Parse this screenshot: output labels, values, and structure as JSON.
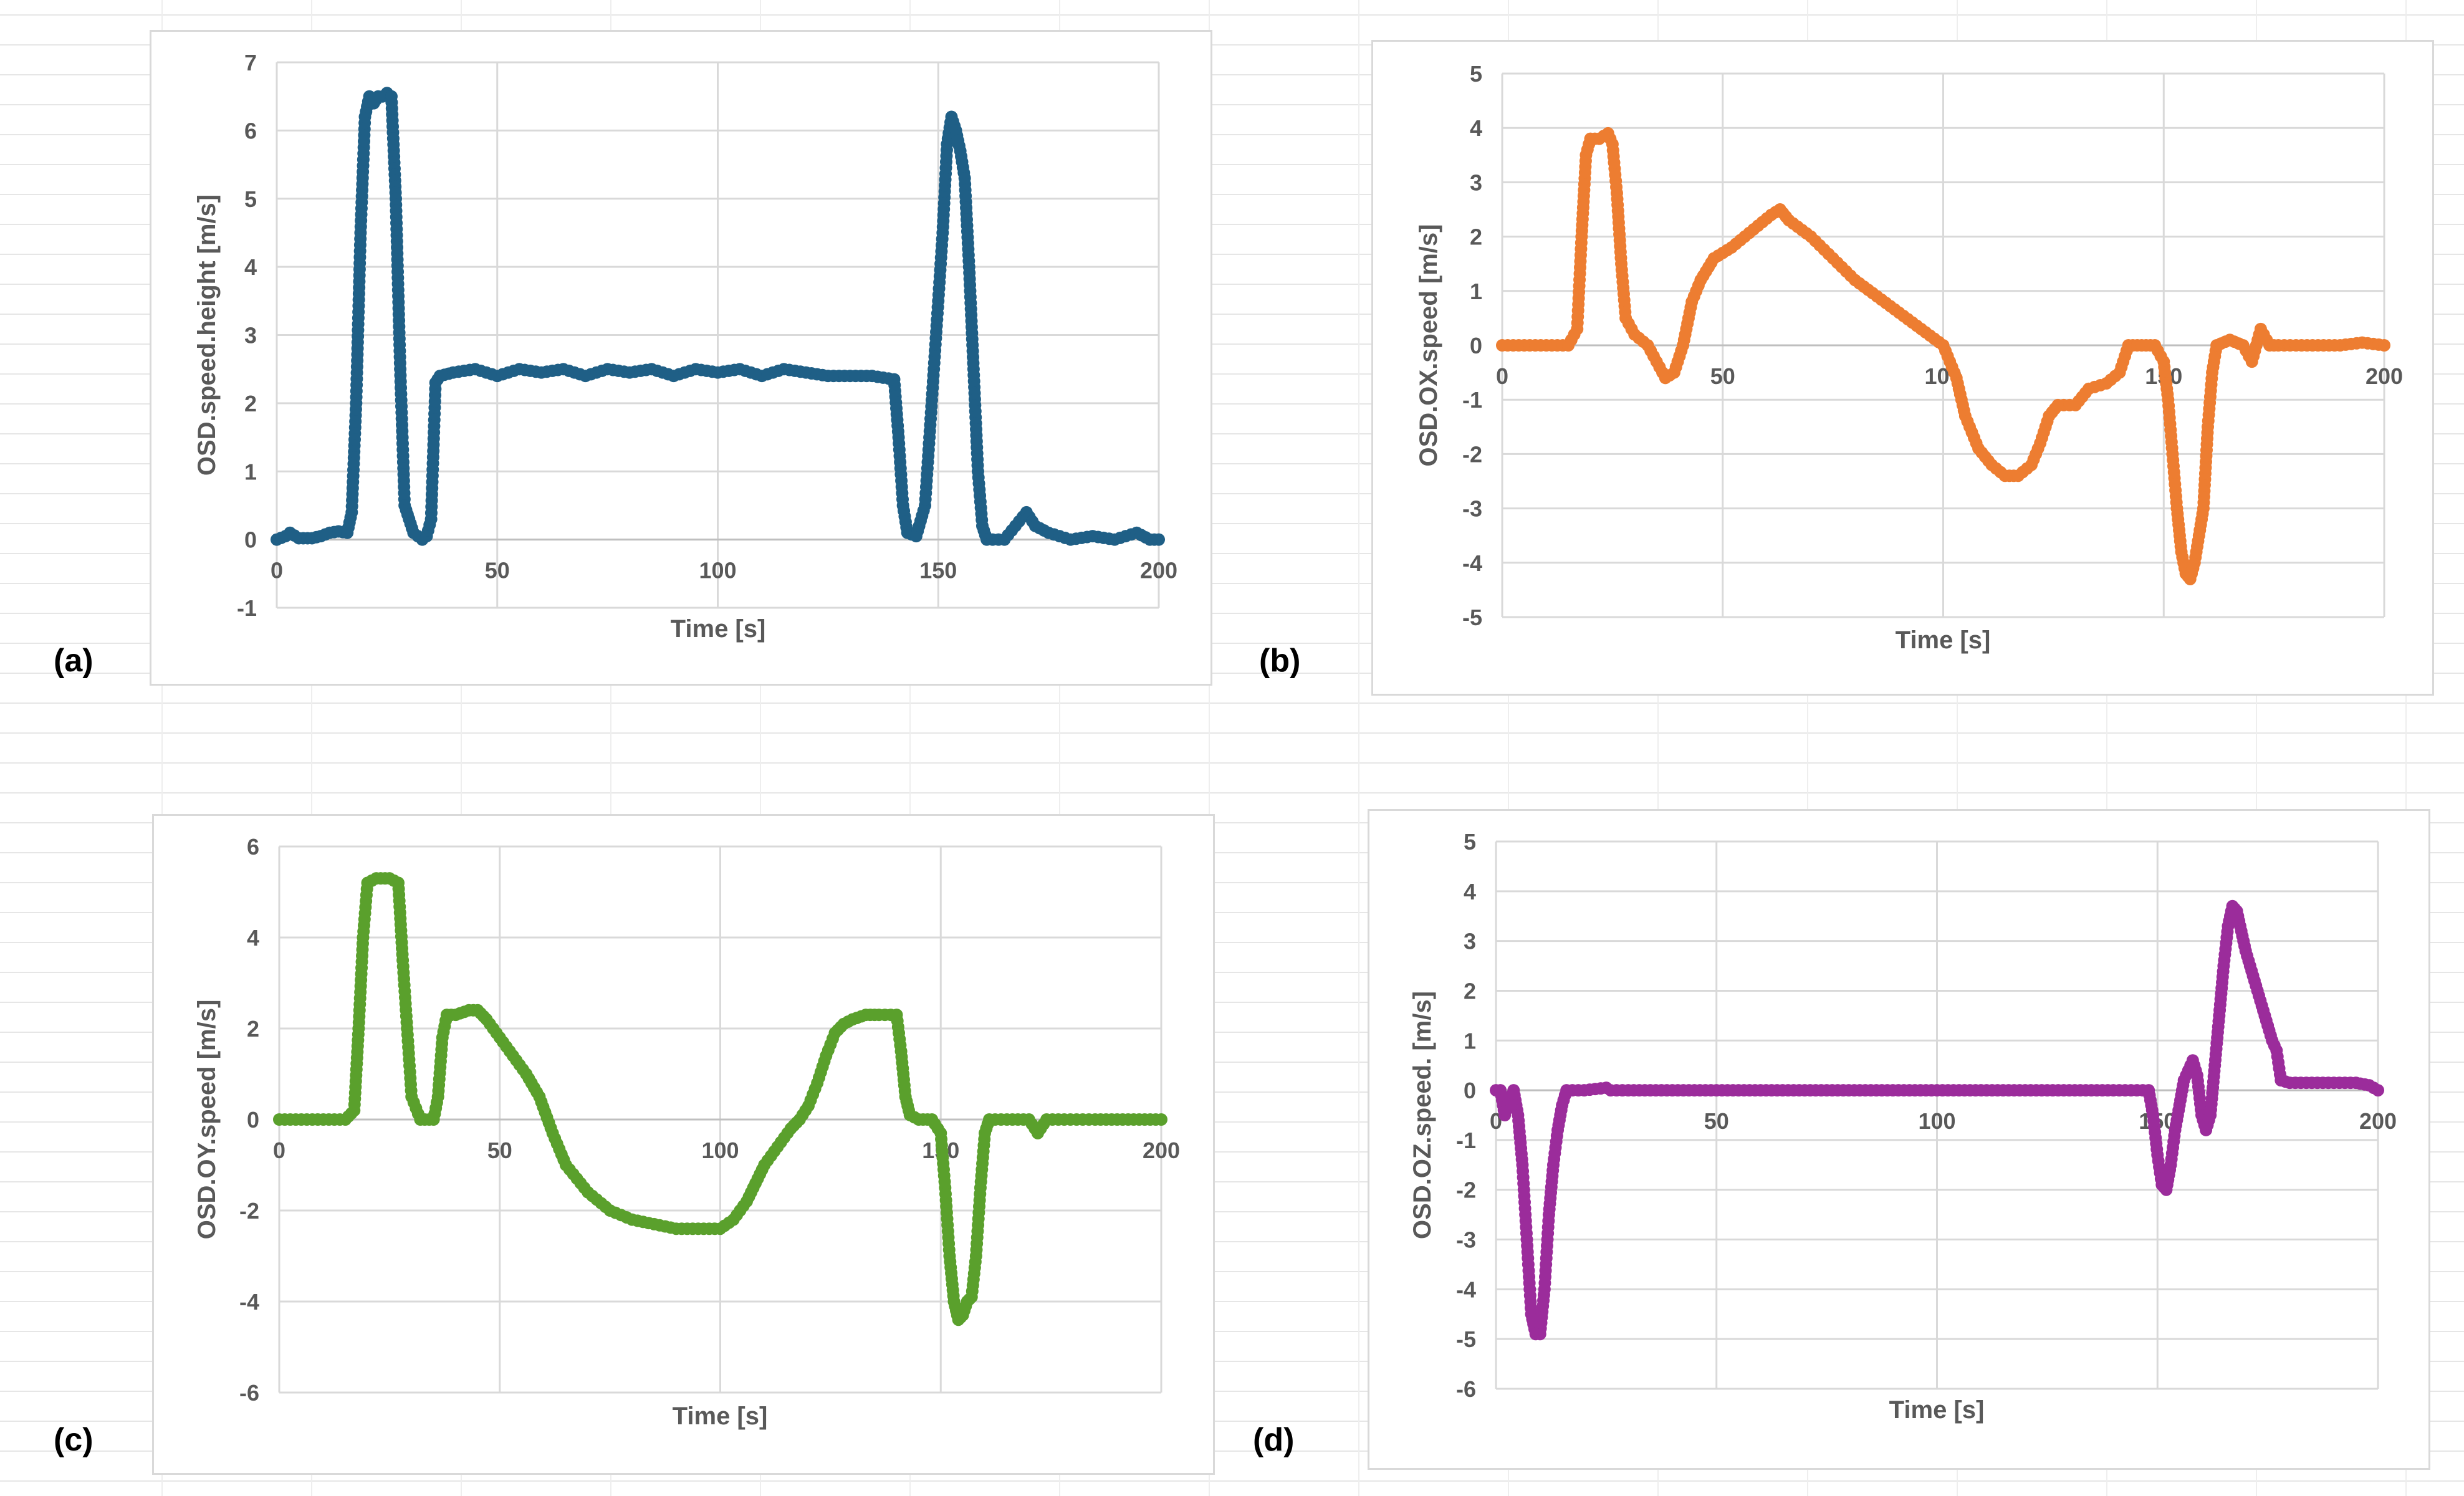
{
  "chart_data": [
    {
      "type": "scatter",
      "panel": "(a)",
      "xlabel": "Time [s]",
      "ylabel": "OSD.speed.height [m/s]",
      "xlim": [
        0,
        200
      ],
      "ylim": [
        -1,
        7
      ],
      "xticks": [
        0,
        50,
        100,
        150,
        200
      ],
      "yticks": [
        -1,
        0,
        1,
        2,
        3,
        4,
        5,
        6,
        7
      ],
      "color": "#1f5f86",
      "points": [
        [
          0,
          0
        ],
        [
          2,
          0.05
        ],
        [
          3,
          0.1
        ],
        [
          5,
          0.02
        ],
        [
          8,
          0.02
        ],
        [
          10,
          0.05
        ],
        [
          12,
          0.1
        ],
        [
          14,
          0.12
        ],
        [
          16,
          0.1
        ],
        [
          17,
          0.4
        ],
        [
          18,
          2.0
        ],
        [
          19,
          4.5
        ],
        [
          20,
          6.2
        ],
        [
          21,
          6.5
        ],
        [
          22,
          6.4
        ],
        [
          23,
          6.5
        ],
        [
          24,
          6.5
        ],
        [
          25,
          6.55
        ],
        [
          26,
          6.5
        ],
        [
          27,
          5.0
        ],
        [
          28,
          2.5
        ],
        [
          29,
          0.5
        ],
        [
          30,
          0.3
        ],
        [
          31,
          0.1
        ],
        [
          32,
          0.05
        ],
        [
          33,
          0
        ],
        [
          34,
          0.05
        ],
        [
          35,
          0.3
        ],
        [
          36,
          2.3
        ],
        [
          37,
          2.4
        ],
        [
          40,
          2.45
        ],
        [
          45,
          2.5
        ],
        [
          50,
          2.4
        ],
        [
          55,
          2.5
        ],
        [
          60,
          2.45
        ],
        [
          65,
          2.5
        ],
        [
          70,
          2.4
        ],
        [
          75,
          2.5
        ],
        [
          80,
          2.45
        ],
        [
          85,
          2.5
        ],
        [
          90,
          2.4
        ],
        [
          95,
          2.5
        ],
        [
          100,
          2.45
        ],
        [
          105,
          2.5
        ],
        [
          110,
          2.4
        ],
        [
          115,
          2.5
        ],
        [
          120,
          2.45
        ],
        [
          125,
          2.4
        ],
        [
          130,
          2.4
        ],
        [
          135,
          2.4
        ],
        [
          140,
          2.35
        ],
        [
          141,
          1.5
        ],
        [
          142,
          0.5
        ],
        [
          143,
          0.1
        ],
        [
          145,
          0.05
        ],
        [
          147,
          0.5
        ],
        [
          149,
          2.5
        ],
        [
          151,
          4.5
        ],
        [
          152,
          5.8
        ],
        [
          153,
          6.2
        ],
        [
          154,
          6.0
        ],
        [
          155,
          5.7
        ],
        [
          156,
          5.3
        ],
        [
          157,
          4.0
        ],
        [
          158,
          2.5
        ],
        [
          159,
          1.0
        ],
        [
          160,
          0.2
        ],
        [
          161,
          0
        ],
        [
          165,
          0
        ],
        [
          170,
          0.4
        ],
        [
          172,
          0.2
        ],
        [
          175,
          0.1
        ],
        [
          180,
          0
        ],
        [
          185,
          0.05
        ],
        [
          190,
          0
        ],
        [
          195,
          0.1
        ],
        [
          198,
          0
        ],
        [
          200,
          0
        ]
      ]
    },
    {
      "type": "scatter",
      "panel": "(b)",
      "xlabel": "Time [s]",
      "ylabel": "OSD.OX.speed [m/s]",
      "xlim": [
        0,
        200
      ],
      "ylim": [
        -5,
        5
      ],
      "xticks": [
        0,
        50,
        100,
        150,
        200
      ],
      "yticks": [
        -5,
        -4,
        -3,
        -2,
        -1,
        0,
        1,
        2,
        3,
        4,
        5
      ],
      "color": "#ed7d31",
      "points": [
        [
          0,
          0
        ],
        [
          5,
          0
        ],
        [
          10,
          0
        ],
        [
          15,
          0
        ],
        [
          17,
          0.3
        ],
        [
          18,
          2.0
        ],
        [
          19,
          3.5
        ],
        [
          20,
          3.8
        ],
        [
          22,
          3.8
        ],
        [
          24,
          3.9
        ],
        [
          25,
          3.7
        ],
        [
          26,
          2.8
        ],
        [
          27,
          1.5
        ],
        [
          28,
          0.5
        ],
        [
          30,
          0.2
        ],
        [
          33,
          0
        ],
        [
          35,
          -0.3
        ],
        [
          37,
          -0.6
        ],
        [
          39,
          -0.5
        ],
        [
          41,
          0
        ],
        [
          43,
          0.8
        ],
        [
          45,
          1.2
        ],
        [
          48,
          1.6
        ],
        [
          52,
          1.8
        ],
        [
          55,
          2.0
        ],
        [
          58,
          2.2
        ],
        [
          61,
          2.4
        ],
        [
          63,
          2.5
        ],
        [
          65,
          2.3
        ],
        [
          70,
          2.0
        ],
        [
          75,
          1.6
        ],
        [
          80,
          1.2
        ],
        [
          85,
          0.9
        ],
        [
          90,
          0.6
        ],
        [
          95,
          0.3
        ],
        [
          100,
          0
        ],
        [
          103,
          -0.6
        ],
        [
          105,
          -1.3
        ],
        [
          108,
          -1.9
        ],
        [
          111,
          -2.2
        ],
        [
          114,
          -2.4
        ],
        [
          117,
          -2.4
        ],
        [
          120,
          -2.2
        ],
        [
          122,
          -1.8
        ],
        [
          124,
          -1.3
        ],
        [
          126,
          -1.1
        ],
        [
          130,
          -1.1
        ],
        [
          133,
          -0.8
        ],
        [
          137,
          -0.7
        ],
        [
          140,
          -0.5
        ],
        [
          142,
          0
        ],
        [
          145,
          0
        ],
        [
          148,
          0
        ],
        [
          150,
          -0.3
        ],
        [
          151,
          -1.0
        ],
        [
          152,
          -2.0
        ],
        [
          153,
          -3.0
        ],
        [
          154,
          -3.8
        ],
        [
          155,
          -4.2
        ],
        [
          156,
          -4.3
        ],
        [
          157,
          -4.0
        ],
        [
          158,
          -3.5
        ],
        [
          159,
          -3.0
        ],
        [
          160,
          -1.5
        ],
        [
          161,
          -0.5
        ],
        [
          162,
          0
        ],
        [
          165,
          0.1
        ],
        [
          168,
          0
        ],
        [
          170,
          -0.3
        ],
        [
          172,
          0.3
        ],
        [
          174,
          0
        ],
        [
          176,
          0
        ],
        [
          180,
          0
        ],
        [
          185,
          0
        ],
        [
          190,
          0
        ],
        [
          195,
          0.05
        ],
        [
          200,
          0
        ]
      ]
    },
    {
      "type": "scatter",
      "panel": "(c)",
      "xlabel": "Time [s]",
      "ylabel": "OSD.OY.speed [m/s]",
      "xlim": [
        0,
        200
      ],
      "ylim": [
        -6,
        6
      ],
      "xticks": [
        0,
        50,
        100,
        150,
        200
      ],
      "yticks": [
        -6,
        -4,
        -2,
        0,
        2,
        4,
        6
      ],
      "color": "#5aa02c",
      "points": [
        [
          0,
          0
        ],
        [
          5,
          0
        ],
        [
          10,
          0
        ],
        [
          15,
          0
        ],
        [
          17,
          0.2
        ],
        [
          18,
          2.0
        ],
        [
          19,
          4.0
        ],
        [
          20,
          5.2
        ],
        [
          22,
          5.3
        ],
        [
          25,
          5.3
        ],
        [
          27,
          5.2
        ],
        [
          28,
          3.5
        ],
        [
          29,
          2.0
        ],
        [
          30,
          0.5
        ],
        [
          32,
          0
        ],
        [
          35,
          0
        ],
        [
          36,
          0.5
        ],
        [
          37,
          1.8
        ],
        [
          38,
          2.3
        ],
        [
          40,
          2.3
        ],
        [
          43,
          2.4
        ],
        [
          45,
          2.4
        ],
        [
          47,
          2.2
        ],
        [
          50,
          1.8
        ],
        [
          53,
          1.4
        ],
        [
          56,
          1.0
        ],
        [
          59,
          0.5
        ],
        [
          62,
          -0.3
        ],
        [
          65,
          -1.0
        ],
        [
          70,
          -1.6
        ],
        [
          75,
          -2.0
        ],
        [
          80,
          -2.2
        ],
        [
          85,
          -2.3
        ],
        [
          90,
          -2.4
        ],
        [
          95,
          -2.4
        ],
        [
          100,
          -2.4
        ],
        [
          103,
          -2.2
        ],
        [
          106,
          -1.8
        ],
        [
          108,
          -1.4
        ],
        [
          110,
          -1.0
        ],
        [
          113,
          -0.6
        ],
        [
          116,
          -0.2
        ],
        [
          118,
          0
        ],
        [
          120,
          0.3
        ],
        [
          122,
          0.8
        ],
        [
          124,
          1.4
        ],
        [
          126,
          1.9
        ],
        [
          128,
          2.1
        ],
        [
          130,
          2.2
        ],
        [
          133,
          2.3
        ],
        [
          136,
          2.3
        ],
        [
          140,
          2.3
        ],
        [
          141,
          1.5
        ],
        [
          142,
          0.5
        ],
        [
          143,
          0.1
        ],
        [
          145,
          0
        ],
        [
          148,
          0
        ],
        [
          150,
          -0.3
        ],
        [
          151,
          -1.5
        ],
        [
          152,
          -3.0
        ],
        [
          153,
          -4.0
        ],
        [
          154,
          -4.4
        ],
        [
          155,
          -4.3
        ],
        [
          156,
          -4.0
        ],
        [
          157,
          -3.9
        ],
        [
          158,
          -3.0
        ],
        [
          159,
          -1.5
        ],
        [
          160,
          -0.3
        ],
        [
          161,
          0
        ],
        [
          165,
          0
        ],
        [
          170,
          0
        ],
        [
          172,
          -0.3
        ],
        [
          174,
          0
        ],
        [
          178,
          0
        ],
        [
          185,
          0
        ],
        [
          190,
          0
        ],
        [
          195,
          0
        ],
        [
          200,
          0
        ]
      ]
    },
    {
      "type": "scatter",
      "panel": "(d)",
      "xlabel": "Time [s]",
      "ylabel": "OSD.OZ.speed. [m/s]",
      "xlim": [
        0,
        200
      ],
      "ylim": [
        -6,
        5
      ],
      "xticks": [
        0,
        50,
        100,
        150,
        200
      ],
      "yticks": [
        -6,
        -5,
        -4,
        -3,
        -2,
        -1,
        0,
        1,
        2,
        3,
        4,
        5
      ],
      "color": "#9b2c9b",
      "points": [
        [
          0,
          0
        ],
        [
          1,
          0
        ],
        [
          2,
          -0.5
        ],
        [
          3,
          -0.2
        ],
        [
          4,
          0
        ],
        [
          5,
          -0.5
        ],
        [
          6,
          -1.5
        ],
        [
          7,
          -3.0
        ],
        [
          8,
          -4.5
        ],
        [
          9,
          -4.9
        ],
        [
          10,
          -4.9
        ],
        [
          11,
          -4.0
        ],
        [
          12,
          -2.5
        ],
        [
          13,
          -1.5
        ],
        [
          14,
          -0.8
        ],
        [
          15,
          -0.3
        ],
        [
          16,
          0
        ],
        [
          20,
          0
        ],
        [
          25,
          0.05
        ],
        [
          26,
          0
        ],
        [
          30,
          0
        ],
        [
          40,
          0
        ],
        [
          50,
          0
        ],
        [
          60,
          0
        ],
        [
          70,
          0
        ],
        [
          80,
          0
        ],
        [
          90,
          0
        ],
        [
          100,
          0
        ],
        [
          110,
          0
        ],
        [
          120,
          0
        ],
        [
          130,
          0
        ],
        [
          140,
          0
        ],
        [
          148,
          0
        ],
        [
          149,
          -0.5
        ],
        [
          150,
          -1.3
        ],
        [
          151,
          -1.9
        ],
        [
          152,
          -2.0
        ],
        [
          153,
          -1.5
        ],
        [
          154,
          -0.8
        ],
        [
          155,
          -0.3
        ],
        [
          156,
          0.2
        ],
        [
          157,
          0.4
        ],
        [
          158,
          0.6
        ],
        [
          159,
          0.3
        ],
        [
          160,
          -0.5
        ],
        [
          161,
          -0.8
        ],
        [
          162,
          -0.5
        ],
        [
          163,
          0.5
        ],
        [
          164,
          1.5
        ],
        [
          165,
          2.5
        ],
        [
          166,
          3.3
        ],
        [
          167,
          3.7
        ],
        [
          168,
          3.6
        ],
        [
          169,
          3.2
        ],
        [
          170,
          2.8
        ],
        [
          171,
          2.5
        ],
        [
          172,
          2.2
        ],
        [
          173,
          1.9
        ],
        [
          174,
          1.6
        ],
        [
          175,
          1.3
        ],
        [
          176,
          1.0
        ],
        [
          177,
          0.8
        ],
        [
          178,
          0.2
        ],
        [
          180,
          0.15
        ],
        [
          185,
          0.15
        ],
        [
          190,
          0.15
        ],
        [
          195,
          0.15
        ],
        [
          198,
          0.1
        ],
        [
          200,
          0
        ]
      ]
    }
  ]
}
